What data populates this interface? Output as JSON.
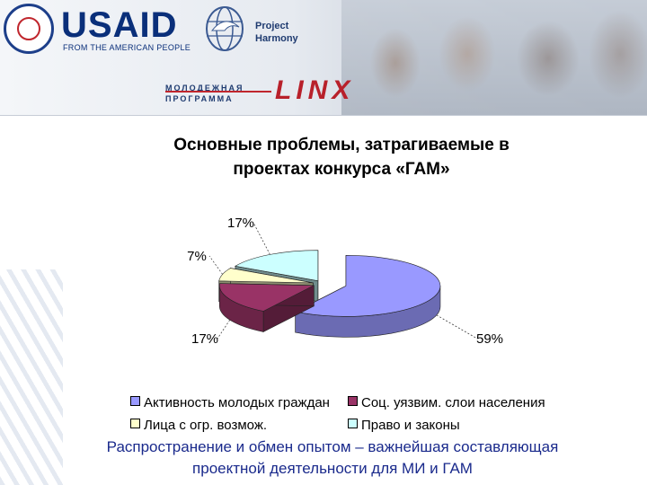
{
  "header": {
    "usaid_word": "USAID",
    "usaid_tagline": "FROM THE AMERICAN PEOPLE",
    "partner_line1": "Project",
    "partner_line2": "Harmony",
    "program_line1": "МОЛОДЕЖНАЯ",
    "program_line2": "ПРОГРАММА",
    "program_brand": "LINX"
  },
  "chart_data": {
    "type": "pie",
    "title_line1": "Основные проблемы, затрагиваемые в",
    "title_line2": "проектах конкурса «ГАМ»",
    "categories": [
      "Активность молодых граждан",
      "Соц. уязвим. слои населения",
      "Лица с огр. возмож.",
      "Право и законы"
    ],
    "values": [
      59,
      17,
      7,
      17
    ],
    "labels": [
      "59%",
      "17%",
      "7%",
      "17%"
    ],
    "colors": [
      "#9999ff",
      "#993366",
      "#ffffcc",
      "#ccffff"
    ],
    "three_d": true,
    "exploded": true,
    "legend_position": "bottom"
  },
  "caption_line1": "Распространение и обмен опытом – важнейшая составляющая",
  "caption_line2": "проектной деятельности для МИ и ГАМ"
}
